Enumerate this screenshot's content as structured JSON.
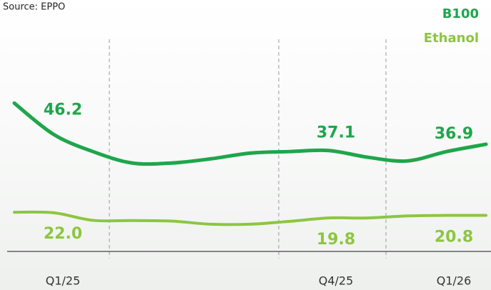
{
  "chart_data": {
    "type": "line",
    "subtitle": "Source: EPPO",
    "categories": [
      "Q1/25",
      null,
      null,
      null,
      null,
      null,
      null,
      null,
      "Q4/25",
      null,
      null,
      "Q1/26",
      null
    ],
    "ylim": [
      18,
      66
    ],
    "y2lim": [
      7.5,
      103.5
    ],
    "legend": "top-right",
    "series": [
      {
        "name": "B100",
        "color": "#1ea64b",
        "values": [
          46.2,
          40.2,
          36.9,
          34.7,
          34.7,
          35.5,
          36.6,
          36.9,
          37.1,
          35.8,
          35.1,
          36.9,
          38.3
        ],
        "value_labels": [
          "46.2",
          null,
          null,
          null,
          null,
          null,
          null,
          null,
          "37.1",
          null,
          null,
          "36.9",
          null
        ]
      },
      {
        "name": "Ethanol",
        "color": "#8dc63f",
        "axis": "y2",
        "values": [
          22.0,
          21.8,
          18.9,
          18.8,
          18.6,
          17.4,
          17.4,
          18.5,
          19.8,
          19.8,
          20.6,
          20.8,
          20.8
        ],
        "value_labels": [
          "22.0",
          null,
          null,
          null,
          null,
          null,
          null,
          null,
          "19.8",
          null,
          null,
          "20.8",
          null
        ]
      }
    ]
  }
}
